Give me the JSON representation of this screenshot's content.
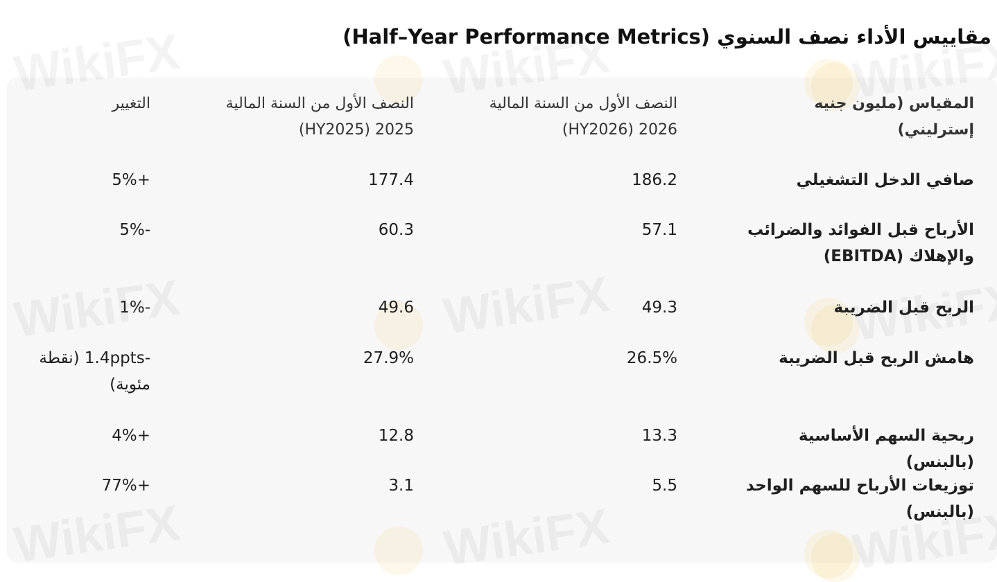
{
  "header": {
    "title": "مقاييس الأداء نصف السنوي (Half–Year Performance Metrics)"
  },
  "watermark": "WikiFX",
  "table": {
    "columns": [
      "المقياس (مليون جنيه إسترليني)",
      "النصف الأول من السنة المالية 2026 (HY2026)",
      "النصف الأول من السنة المالية 2025 (HY2025)",
      "التغيير"
    ],
    "rows": [
      [
        "صافي الدخل التشغيلي",
        186.2,
        177.4,
        "+5%"
      ],
      [
        "الأرباح قبل الفوائد والضرائب والإهلاك (EBITDA)",
        57.1,
        60.3,
        "-5%"
      ],
      [
        "الربح قبل الضريبة",
        49.3,
        49.6,
        "-1%"
      ],
      [
        "هامش الربح قبل الضريبة",
        "26.5%",
        "27.9%",
        "-1.4ppts (نقطة مئوية)"
      ],
      [
        "ربحية السهم الأساسية (بالبنس)",
        13.3,
        12.8,
        "+4%"
      ],
      [
        "توزيعات الأرباح للسهم الواحد (بالبنس)",
        5.5,
        3.1,
        "+77%"
      ]
    ]
  }
}
